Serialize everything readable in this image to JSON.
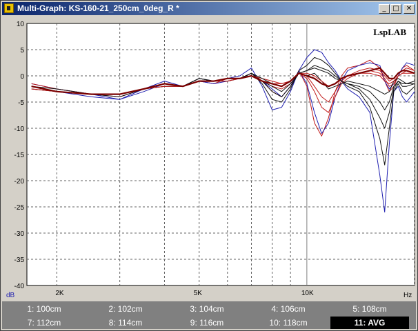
{
  "window": {
    "title": "Multi-Graph: KS-160-21_250cm_0deg_R *",
    "icon": "speaker-icon",
    "controls": {
      "minimize": "_",
      "maximize": "□",
      "close": "✕"
    }
  },
  "chart_data": {
    "type": "line",
    "watermark": "LspLAB",
    "ylabel": "dB",
    "xlabel": "Hz",
    "xscale": "log",
    "xlim": [
      1650,
      20000
    ],
    "ylim": [
      -40,
      10
    ],
    "grid": true,
    "x_ticks": [
      {
        "value": 2000,
        "label": "2K"
      },
      {
        "value": 5000,
        "label": "5K"
      },
      {
        "value": 10000,
        "label": "10K"
      }
    ],
    "y_ticks": [
      10,
      5,
      0,
      -5,
      -10,
      -15,
      -20,
      -25,
      -30,
      -35,
      -40
    ],
    "x": [
      1700,
      2000,
      2500,
      3000,
      3500,
      4000,
      4500,
      5000,
      5500,
      6000,
      6500,
      7000,
      7500,
      8000,
      8500,
      9000,
      9500,
      10000,
      10500,
      11000,
      11500,
      12000,
      12500,
      13000,
      14000,
      15000,
      16000,
      16500,
      17000,
      17500,
      18000,
      18500,
      19000,
      20000
    ],
    "series": [
      {
        "color": "#1f1fb0",
        "values": [
          -1.5,
          -2.5,
          -3.5,
          -4.5,
          -2.5,
          -1,
          -2,
          -0.5,
          -1,
          -0.5,
          0,
          1.5,
          -2,
          -6.5,
          -6,
          -3,
          1,
          3.5,
          5,
          4.5,
          2.5,
          1,
          -1,
          -2.5,
          -4,
          -7,
          -19,
          -26,
          -13,
          -3,
          -2,
          -4,
          -5,
          -3
        ]
      },
      {
        "color": "#c01818",
        "values": [
          -1.5,
          -2.5,
          -3.5,
          -4,
          -2.5,
          -1.5,
          -2,
          -1,
          -1.5,
          -0.5,
          -0.5,
          0.5,
          -1,
          -3,
          -4,
          -2,
          1,
          -2,
          -9,
          -11.5,
          -8,
          -3,
          0,
          1.5,
          2,
          3,
          1.5,
          -1,
          -3,
          -2,
          0,
          1.5,
          2,
          1
        ]
      },
      {
        "color": "#1f1fb0",
        "values": [
          -2,
          -3,
          -4,
          -4.5,
          -3,
          -1.5,
          -2,
          -1,
          -1.5,
          -1,
          -0.5,
          0.5,
          -1,
          -2.5,
          -4,
          -2,
          1,
          -1.5,
          -7,
          -11,
          -9,
          -4,
          -1,
          1,
          2,
          2.5,
          2,
          -1,
          -2.5,
          -1.5,
          0,
          1.5,
          2.5,
          2
        ]
      },
      {
        "color": "#101010",
        "values": [
          -2,
          -3,
          -3.5,
          -4,
          -2.5,
          -1.5,
          -2,
          -0.5,
          -1,
          -0.5,
          -0.5,
          0.5,
          -1.5,
          -4.5,
          -5,
          -2.5,
          1,
          2,
          3.5,
          3,
          2,
          0.5,
          -1,
          -2,
          -3,
          -6,
          -12,
          -17,
          -10,
          -3,
          -1.5,
          -3,
          -3.5,
          -2
        ]
      },
      {
        "color": "#c01818",
        "values": [
          -2,
          -3,
          -3.5,
          -3.5,
          -2.5,
          -1.5,
          -2,
          -1,
          -1,
          -0.5,
          -0.5,
          0,
          -1,
          -2,
          -2.5,
          -1.5,
          0.5,
          0,
          -2,
          -4,
          -5,
          -3,
          -1,
          0,
          1,
          1.5,
          1,
          0,
          -1,
          -0.5,
          0.5,
          1,
          1.5,
          1
        ]
      },
      {
        "color": "#101010",
        "values": [
          -2,
          -3,
          -3.5,
          -3.5,
          -2.5,
          -1.5,
          -2,
          -0.5,
          -1,
          -0.5,
          -0.5,
          0.5,
          -1,
          -3,
          -4,
          -2,
          0.5,
          1,
          2,
          1.5,
          1,
          0,
          -1,
          -1.5,
          -2.5,
          -4.5,
          -8,
          -10,
          -7,
          -2.5,
          -1,
          -2,
          -2,
          -1.5
        ]
      },
      {
        "color": "#c01818",
        "values": [
          -2.5,
          -3,
          -3.5,
          -3.5,
          -2.5,
          -2,
          -2,
          -1,
          -1,
          -1,
          -0.5,
          0,
          -1,
          -1.5,
          -1.5,
          -1,
          0.5,
          -0.5,
          -3,
          -6,
          -7,
          -4,
          -1.5,
          -0.5,
          0.5,
          1,
          0.5,
          -0.5,
          -2,
          -1.5,
          0,
          0.5,
          1,
          0.5
        ]
      },
      {
        "color": "#101010",
        "values": [
          -2.5,
          -3,
          -3.5,
          -3.5,
          -2.5,
          -2,
          -2,
          -1,
          -1,
          -1,
          -0.5,
          0,
          -1,
          -2,
          -3,
          -1.5,
          0.5,
          0,
          0.5,
          -1,
          -2.5,
          -2,
          -1.5,
          -1,
          -1.5,
          -2,
          -3,
          -3.5,
          -3,
          -1,
          -0.5,
          -1,
          -1.5,
          -1.5
        ]
      },
      {
        "color": "#c01818",
        "values": [
          -2.5,
          -3,
          -3.5,
          -3.5,
          -2.5,
          -2,
          -2,
          -1,
          -1,
          -1,
          -0.5,
          0,
          -0.5,
          -1,
          -1.5,
          -1,
          0.5,
          0.5,
          0,
          -1,
          -2,
          -1.5,
          -0.5,
          0,
          0.5,
          0.5,
          0,
          -1,
          -1.5,
          -1,
          0,
          0.5,
          0.5,
          0.5
        ]
      },
      {
        "color": "#101010",
        "values": [
          -2,
          -2.5,
          -3.5,
          -3.5,
          -2.5,
          -1.5,
          -2,
          -0.5,
          -1,
          -0.5,
          -0.5,
          0.5,
          -0.5,
          -1.5,
          -2,
          -1,
          0.5,
          1,
          1.5,
          1,
          0.5,
          -0.5,
          -1,
          -1.5,
          -2,
          -3,
          -5,
          -6.5,
          -5,
          -2,
          -1,
          -1.5,
          -1.5,
          -1
        ]
      },
      {
        "color": "#7a0000",
        "width": 2.2,
        "values": [
          -2,
          -3,
          -3.5,
          -3.5,
          -2.5,
          -1.5,
          -2,
          -1,
          -1,
          -0.5,
          -0.5,
          0,
          -1,
          -1.5,
          -2,
          -1,
          0.5,
          0,
          -0.5,
          -1.5,
          -2,
          -1.5,
          -0.5,
          0,
          0.5,
          1,
          1.5,
          0.5,
          -0.5,
          -0.5,
          0.5,
          1,
          1,
          0.5
        ]
      }
    ],
    "legend": {
      "placement": "bottom",
      "entries": [
        "1: 100cm",
        "2: 102cm",
        "3: 104cm",
        "4: 106cm",
        "5: 108cm",
        "7: 112cm",
        "8: 114cm",
        "9: 116cm",
        "10: 118cm",
        "11: AVG"
      ],
      "selected": "11: AVG"
    }
  }
}
